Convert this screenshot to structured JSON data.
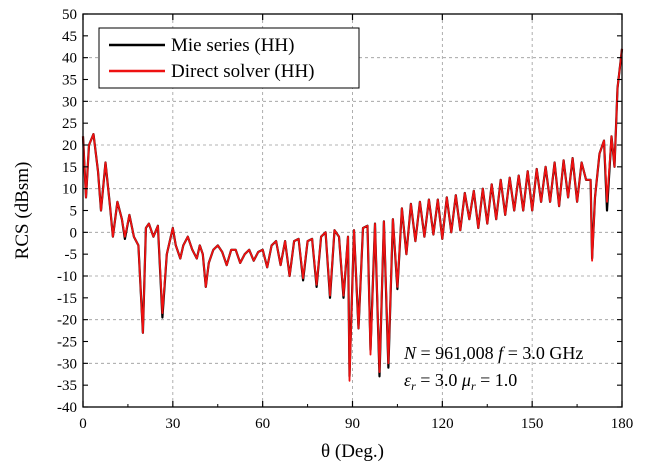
{
  "chart_data": {
    "type": "line",
    "title": "",
    "xlabel": "θ (Deg.)",
    "ylabel": "RCS (dBsm)",
    "xlim": [
      0,
      180
    ],
    "ylim": [
      -40,
      50
    ],
    "xticks": [
      0,
      30,
      60,
      90,
      120,
      150,
      180
    ],
    "yticks": [
      -40,
      -35,
      -30,
      -25,
      -20,
      -15,
      -10,
      -5,
      0,
      5,
      10,
      15,
      20,
      25,
      30,
      35,
      40,
      45,
      50
    ],
    "grid": true,
    "legend_position": "top-left",
    "series": [
      {
        "name": "Mie series (HH)",
        "color": "#000000",
        "points": [
          [
            0,
            22
          ],
          [
            1,
            8
          ],
          [
            2,
            20
          ],
          [
            3.5,
            22.5
          ],
          [
            5,
            14
          ],
          [
            6,
            5
          ],
          [
            7.5,
            16
          ],
          [
            9,
            6
          ],
          [
            10,
            -1
          ],
          [
            11.5,
            7
          ],
          [
            13,
            3
          ],
          [
            14,
            -1.5
          ],
          [
            15.5,
            4
          ],
          [
            17,
            -1
          ],
          [
            18.5,
            -3
          ],
          [
            20,
            -23
          ],
          [
            21,
            1
          ],
          [
            22,
            2
          ],
          [
            23.5,
            -1
          ],
          [
            25,
            1.5
          ],
          [
            26.5,
            -19.5
          ],
          [
            28,
            -5
          ],
          [
            30,
            1
          ],
          [
            31,
            -3
          ],
          [
            32.5,
            -6
          ],
          [
            33.5,
            -3
          ],
          [
            35,
            -1
          ],
          [
            36.5,
            -4
          ],
          [
            38,
            -6
          ],
          [
            39,
            -3
          ],
          [
            40,
            -5
          ],
          [
            41,
            -12.5
          ],
          [
            42,
            -7
          ],
          [
            43.5,
            -4
          ],
          [
            45,
            -3
          ],
          [
            46.5,
            -4.5
          ],
          [
            48,
            -7.5
          ],
          [
            49.5,
            -4
          ],
          [
            51,
            -4
          ],
          [
            52.5,
            -7
          ],
          [
            54,
            -5
          ],
          [
            55.5,
            -4
          ],
          [
            57,
            -6.5
          ],
          [
            58.5,
            -4.5
          ],
          [
            60,
            -4
          ],
          [
            61.5,
            -8
          ],
          [
            63,
            -3
          ],
          [
            64.5,
            -2
          ],
          [
            66,
            -7.5
          ],
          [
            67.5,
            -2
          ],
          [
            69,
            -10
          ],
          [
            70.5,
            -2
          ],
          [
            72,
            -1.5
          ],
          [
            73.5,
            -11
          ],
          [
            75,
            -2
          ],
          [
            76.5,
            -1.5
          ],
          [
            78,
            -12.5
          ],
          [
            79.5,
            -1
          ],
          [
            81,
            0
          ],
          [
            82.5,
            -15
          ],
          [
            84,
            0.5
          ],
          [
            85.5,
            -1
          ],
          [
            87,
            -15
          ],
          [
            88.5,
            -1
          ],
          [
            89,
            -33
          ],
          [
            90.5,
            0.5
          ],
          [
            92,
            -22
          ],
          [
            93.5,
            1
          ],
          [
            95,
            1.5
          ],
          [
            96,
            -27
          ],
          [
            97.5,
            2
          ],
          [
            99,
            -33
          ],
          [
            100.5,
            2.5
          ],
          [
            102,
            -31
          ],
          [
            103.5,
            3
          ],
          [
            105,
            -13
          ],
          [
            106.5,
            5.5
          ],
          [
            108,
            -5
          ],
          [
            109.5,
            6.5
          ],
          [
            111,
            -2
          ],
          [
            112.5,
            7
          ],
          [
            114,
            -1
          ],
          [
            115.5,
            7.5
          ],
          [
            117,
            -0.5
          ],
          [
            118.5,
            7.5
          ],
          [
            120,
            -1.5
          ],
          [
            121.5,
            8
          ],
          [
            123,
            0
          ],
          [
            124.5,
            8.5
          ],
          [
            126,
            0.5
          ],
          [
            127.5,
            9
          ],
          [
            129,
            3
          ],
          [
            130.5,
            9.5
          ],
          [
            132,
            1
          ],
          [
            133.5,
            10
          ],
          [
            135,
            2
          ],
          [
            136.5,
            11
          ],
          [
            138,
            3
          ],
          [
            139.5,
            12
          ],
          [
            141,
            4
          ],
          [
            142.5,
            12.5
          ],
          [
            144,
            5
          ],
          [
            145.5,
            13
          ],
          [
            147,
            5
          ],
          [
            148.5,
            14
          ],
          [
            150,
            5
          ],
          [
            151.5,
            14.5
          ],
          [
            153,
            7
          ],
          [
            154.5,
            15
          ],
          [
            156,
            7
          ],
          [
            157.5,
            16
          ],
          [
            159,
            6
          ],
          [
            160.5,
            16.5
          ],
          [
            162,
            8
          ],
          [
            163.5,
            17
          ],
          [
            165,
            7
          ],
          [
            166.5,
            16
          ],
          [
            168,
            12
          ],
          [
            169.5,
            12
          ],
          [
            170,
            -6
          ],
          [
            171,
            8
          ],
          [
            172.5,
            18
          ],
          [
            174,
            21
          ],
          [
            175,
            5
          ],
          [
            176.5,
            22
          ],
          [
            177.5,
            15
          ],
          [
            178.5,
            33
          ],
          [
            180,
            42
          ]
        ]
      },
      {
        "name": "Direct solver (HH)",
        "color": "#ee1111",
        "points": [
          [
            0,
            22
          ],
          [
            1,
            8
          ],
          [
            2,
            20
          ],
          [
            3.5,
            22.5
          ],
          [
            5,
            14
          ],
          [
            6,
            5
          ],
          [
            7.5,
            16
          ],
          [
            9,
            6
          ],
          [
            10,
            -1
          ],
          [
            11.5,
            7
          ],
          [
            13,
            3
          ],
          [
            14,
            -1
          ],
          [
            15.5,
            4
          ],
          [
            17,
            -1
          ],
          [
            18.5,
            -3
          ],
          [
            20,
            -23
          ],
          [
            21,
            1
          ],
          [
            22,
            2
          ],
          [
            23.5,
            -1
          ],
          [
            25,
            1.5
          ],
          [
            26.5,
            -18.5
          ],
          [
            28,
            -5
          ],
          [
            30,
            1
          ],
          [
            31,
            -3
          ],
          [
            32.5,
            -6
          ],
          [
            33.5,
            -3
          ],
          [
            35,
            -1
          ],
          [
            36.5,
            -4
          ],
          [
            38,
            -6
          ],
          [
            39,
            -3
          ],
          [
            40,
            -5
          ],
          [
            41,
            -12.5
          ],
          [
            42,
            -7
          ],
          [
            43.5,
            -4
          ],
          [
            45,
            -3
          ],
          [
            46.5,
            -4.5
          ],
          [
            48,
            -7.5
          ],
          [
            49.5,
            -4
          ],
          [
            51,
            -4
          ],
          [
            52.5,
            -7
          ],
          [
            54,
            -5
          ],
          [
            55.5,
            -4
          ],
          [
            57,
            -6.5
          ],
          [
            58.5,
            -4.5
          ],
          [
            60,
            -4
          ],
          [
            61.5,
            -8
          ],
          [
            63,
            -3
          ],
          [
            64.5,
            -2
          ],
          [
            66,
            -7.5
          ],
          [
            67.5,
            -2
          ],
          [
            69,
            -10
          ],
          [
            70.5,
            -2
          ],
          [
            72,
            -1.5
          ],
          [
            73.5,
            -10.5
          ],
          [
            75,
            -2
          ],
          [
            76.5,
            -1.5
          ],
          [
            78,
            -12
          ],
          [
            79.5,
            -1
          ],
          [
            81,
            0
          ],
          [
            82.5,
            -14.5
          ],
          [
            84,
            0.5
          ],
          [
            85.5,
            -1
          ],
          [
            87,
            -14.5
          ],
          [
            88.5,
            -1
          ],
          [
            89,
            -34
          ],
          [
            90.5,
            0.5
          ],
          [
            92,
            -22
          ],
          [
            93.5,
            1
          ],
          [
            95,
            1.5
          ],
          [
            96,
            -28
          ],
          [
            97.5,
            2
          ],
          [
            99,
            -32
          ],
          [
            100.5,
            2.5
          ],
          [
            102,
            -30
          ],
          [
            103.5,
            3
          ],
          [
            105,
            -12.5
          ],
          [
            106.5,
            5.5
          ],
          [
            108,
            -5
          ],
          [
            109.5,
            6.5
          ],
          [
            111,
            -2
          ],
          [
            112.5,
            7
          ],
          [
            114,
            -1
          ],
          [
            115.5,
            7.5
          ],
          [
            117,
            -0.5
          ],
          [
            118.5,
            7.5
          ],
          [
            120,
            -1.5
          ],
          [
            121.5,
            8
          ],
          [
            123,
            0
          ],
          [
            124.5,
            8.5
          ],
          [
            126,
            0.5
          ],
          [
            127.5,
            9
          ],
          [
            129,
            3
          ],
          [
            130.5,
            9.5
          ],
          [
            132,
            1
          ],
          [
            133.5,
            10
          ],
          [
            135,
            2
          ],
          [
            136.5,
            11
          ],
          [
            138,
            3
          ],
          [
            139.5,
            12
          ],
          [
            141,
            4
          ],
          [
            142.5,
            12.5
          ],
          [
            144,
            5
          ],
          [
            145.5,
            13
          ],
          [
            147,
            5
          ],
          [
            148.5,
            14
          ],
          [
            150,
            5
          ],
          [
            151.5,
            14.5
          ],
          [
            153,
            7
          ],
          [
            154.5,
            15
          ],
          [
            156,
            7
          ],
          [
            157.5,
            16
          ],
          [
            159,
            6
          ],
          [
            160.5,
            16.5
          ],
          [
            162,
            8
          ],
          [
            163.5,
            17
          ],
          [
            165,
            7
          ],
          [
            166.5,
            16
          ],
          [
            168,
            12
          ],
          [
            169.5,
            12
          ],
          [
            170,
            -6.5
          ],
          [
            171,
            8
          ],
          [
            172.5,
            18
          ],
          [
            174,
            21
          ],
          [
            175,
            7
          ],
          [
            176.5,
            22
          ],
          [
            177.5,
            15
          ],
          [
            178.5,
            33
          ],
          [
            180,
            42
          ]
        ]
      }
    ],
    "annotations": {
      "line1_N": "N",
      "line1_rest": " = 961,008  ",
      "line1_f": "f",
      "line1_freq": " = 3.0 GHz",
      "line2_eps": "ε",
      "line2_eps_sub": "r",
      "line2_eps_val": " = 3.0  ",
      "line2_mu": "μ",
      "line2_mu_sub": "r",
      "line2_mu_val": " = 1.0"
    }
  }
}
